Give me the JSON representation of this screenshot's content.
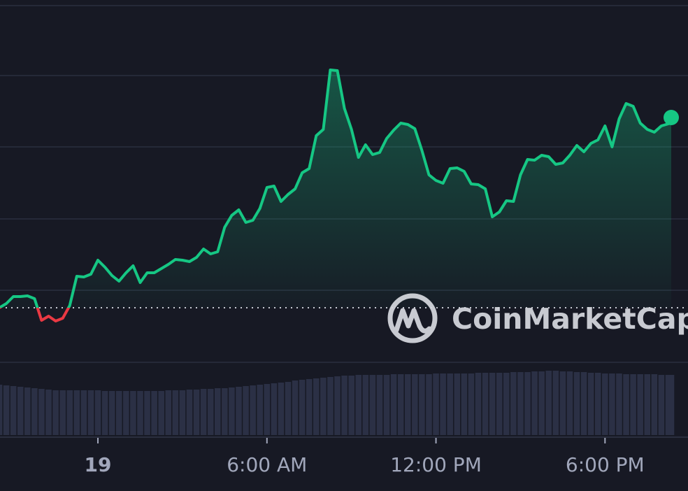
{
  "chart_data": {
    "type": "line",
    "x": [
      -3.5,
      -3.25,
      -3,
      -2.75,
      -2.5,
      -2.25,
      -2,
      -1.75,
      -1.5,
      -1.25,
      -1,
      -0.75,
      -0.5,
      -0.25,
      0,
      0.25,
      0.5,
      0.75,
      1,
      1.25,
      1.5,
      1.75,
      2,
      2.25,
      2.5,
      2.75,
      3,
      3.25,
      3.5,
      3.75,
      4,
      4.25,
      4.5,
      4.75,
      5,
      5.25,
      5.5,
      5.75,
      6,
      6.25,
      6.5,
      6.75,
      7,
      7.25,
      7.5,
      7.75,
      8,
      8.25,
      8.5,
      8.75,
      9,
      9.25,
      9.5,
      9.75,
      10,
      10.25,
      10.5,
      10.75,
      11,
      11.25,
      11.5,
      11.75,
      12,
      12.25,
      12.5,
      12.75,
      13,
      13.25,
      13.5,
      13.75,
      14,
      14.25,
      14.5,
      14.75,
      15,
      15.25,
      15.5,
      15.75,
      16,
      16.25,
      16.5,
      16.75,
      17,
      17.25,
      17.5,
      17.75,
      18,
      18.25,
      18.5,
      18.75,
      19,
      19.25,
      19.5,
      19.75,
      20,
      20.25,
      20.35
    ],
    "values": [
      78,
      84,
      94,
      94,
      95,
      91,
      60,
      66,
      59,
      63,
      81,
      123,
      122,
      126,
      146,
      136,
      124,
      116,
      128,
      138,
      114,
      128,
      128,
      134,
      140,
      147,
      146,
      144,
      150,
      162,
      155,
      158,
      193,
      210,
      218,
      200,
      203,
      220,
      250,
      252,
      230,
      240,
      248,
      271,
      277,
      324,
      333,
      418,
      417,
      363,
      333,
      293,
      311,
      297,
      300,
      320,
      332,
      342,
      340,
      334,
      303,
      268,
      260,
      256,
      277,
      278,
      273,
      255,
      254,
      248,
      208,
      215,
      231,
      230,
      268,
      290,
      289,
      296,
      294,
      283,
      285,
      296,
      310,
      301,
      313,
      318,
      338,
      308,
      348,
      370,
      366,
      342,
      333,
      329,
      338,
      341,
      350
    ],
    "volume": [
      72,
      71,
      70,
      69,
      68,
      67,
      66,
      65,
      64,
      64,
      64,
      64,
      64,
      64,
      64,
      63,
      63,
      63,
      63,
      63,
      63,
      63,
      63,
      63,
      64,
      64,
      64,
      65,
      65,
      66,
      66,
      67,
      67,
      68,
      69,
      70,
      71,
      72,
      73,
      74,
      75,
      76,
      78,
      79,
      80,
      81,
      82,
      83,
      84,
      85,
      85,
      86,
      86,
      86,
      86,
      86,
      87,
      87,
      87,
      87,
      87,
      87,
      88,
      88,
      88,
      88,
      88,
      88,
      89,
      89,
      89,
      89,
      89,
      90,
      90,
      90,
      91,
      91,
      92,
      92,
      91,
      91,
      90,
      90,
      89,
      89,
      88,
      88,
      88,
      87,
      87,
      87,
      87,
      87,
      86,
      86,
      86
    ],
    "baseline": 78,
    "xlim": [
      -3.5,
      20.35
    ],
    "xticks": [
      {
        "value": 0,
        "label": "19"
      },
      {
        "value": 6,
        "label": "6:00 AM"
      },
      {
        "value": 12,
        "label": "12:00 PM"
      },
      {
        "value": 18,
        "label": "6:00 PM"
      }
    ],
    "ylim": [
      0,
      518
    ],
    "grid_lines": [
      0,
      103,
      205,
      308,
      410,
      510
    ],
    "volume_ylim": [
      0,
      100
    ],
    "up_color": "#16c784",
    "down_color": "#ea3943",
    "volume_color": "#2b3045",
    "watermark": "CoinMarketCap"
  }
}
